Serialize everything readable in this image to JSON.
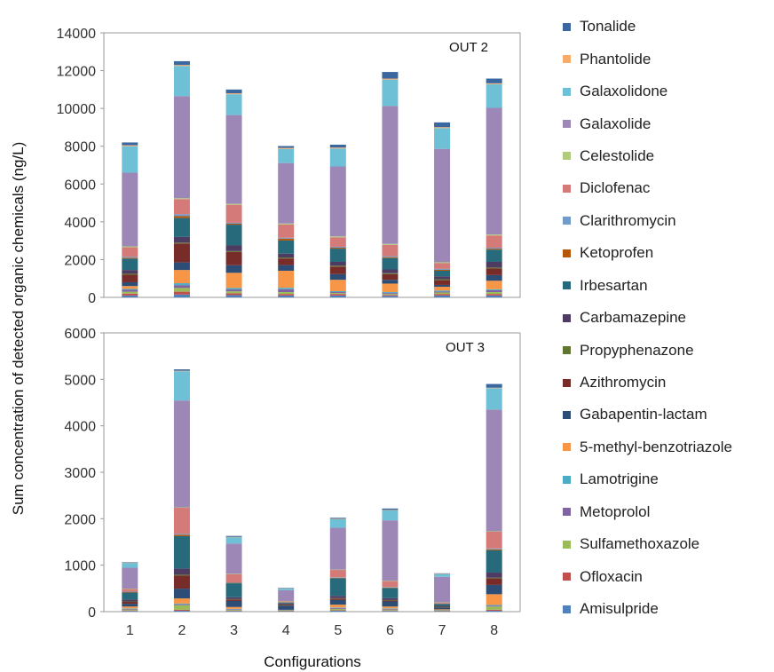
{
  "chart_data": {
    "type": "bar",
    "stacked": true,
    "ylabel": "Sum concentration of detected organic chemicals (ng/L)",
    "xlabel": "Configurations",
    "categories": [
      "1",
      "2",
      "3",
      "4",
      "5",
      "6",
      "7",
      "8"
    ],
    "legend": {
      "position": "right",
      "order": [
        "Tonalide",
        "Phantolide",
        "Galaxolidone",
        "Galaxolide",
        "Celestolide",
        "Diclofenac",
        "Clarithromycin",
        "Ketoprofen",
        "Irbesartan",
        "Carbamazepine",
        "Propyphenazone",
        "Azithromycin",
        "Gabapentin-lactam",
        "5-methyl-benzotriazole",
        "Lamotrigine",
        "Metoprolol",
        "Sulfamethoxazole",
        "Ofloxacin",
        "Amisulpride"
      ]
    },
    "series_colors": {
      "Amisulpride": "#4f81bd",
      "Ofloxacin": "#c0504d",
      "Sulfamethoxazole": "#9bbb59",
      "Metoprolol": "#8064a2",
      "Lamotrigine": "#4bacc6",
      "5-methyl-benzotriazole": "#f79646",
      "Gabapentin-lactam": "#2c4d75",
      "Azithromycin": "#772c2a",
      "Propyphenazone": "#5f7530",
      "Carbamazepine": "#4d3b62",
      "Irbesartan": "#276a7c",
      "Ketoprofen": "#b65708",
      "Clarithromycin": "#729aca",
      "Diclofenac": "#d47a78",
      "Celestolide": "#afcb7b",
      "Galaxolide": "#9d87b7",
      "Galaxolidone": "#6ec0d6",
      "Phantolide": "#f9ab6b",
      "Tonalide": "#3a67a0"
    },
    "panels": [
      {
        "label": "OUT 2",
        "ylim": [
          0,
          14000
        ],
        "yticks": [
          0,
          2000,
          4000,
          6000,
          8000,
          10000,
          12000,
          14000
        ],
        "grid": false,
        "series": [
          {
            "name": "Amisulpride",
            "values": [
              100,
              150,
              120,
              100,
              100,
              80,
              100,
              100
            ]
          },
          {
            "name": "Ofloxacin",
            "values": [
              100,
              150,
              100,
              80,
              80,
              50,
              80,
              80
            ]
          },
          {
            "name": "Sulfamethoxazole",
            "values": [
              100,
              200,
              100,
              100,
              50,
              50,
              80,
              100
            ]
          },
          {
            "name": "Metoprolol",
            "values": [
              100,
              150,
              100,
              150,
              50,
              50,
              50,
              100
            ]
          },
          {
            "name": "Lamotrigine",
            "values": [
              50,
              100,
              80,
              80,
              50,
              50,
              50,
              50
            ]
          },
          {
            "name": "5-methyl-benzotriazole",
            "values": [
              150,
              700,
              800,
              900,
              600,
              450,
              200,
              450
            ]
          },
          {
            "name": "Gabapentin-lactam",
            "values": [
              200,
              400,
              400,
              300,
              300,
              200,
              100,
              300
            ]
          },
          {
            "name": "Azithromycin",
            "values": [
              400,
              1000,
              700,
              350,
              400,
              300,
              250,
              350
            ]
          },
          {
            "name": "Propyphenazone",
            "values": [
              50,
              50,
              50,
              50,
              50,
              50,
              50,
              50
            ]
          },
          {
            "name": "Carbamazepine",
            "values": [
              200,
              300,
              300,
              200,
              200,
              200,
              150,
              300
            ]
          },
          {
            "name": "Irbesartan",
            "values": [
              600,
              1000,
              1100,
              700,
              700,
              600,
              300,
              650
            ]
          },
          {
            "name": "Ketoprofen",
            "values": [
              50,
              100,
              50,
              100,
              50,
              50,
              50,
              50
            ]
          },
          {
            "name": "Clarithromycin",
            "values": [
              50,
              100,
              50,
              50,
              50,
              50,
              50,
              50
            ]
          },
          {
            "name": "Diclofenac",
            "values": [
              500,
              800,
              950,
              700,
              500,
              600,
              300,
              650
            ]
          },
          {
            "name": "Celestolide",
            "values": [
              50,
              50,
              50,
              50,
              50,
              50,
              50,
              50
            ]
          },
          {
            "name": "Galaxolide",
            "values": [
              3900,
              5400,
              4700,
              3200,
              3700,
              7300,
              6000,
              6700
            ]
          },
          {
            "name": "Galaxolidone",
            "values": [
              1400,
              1600,
              1100,
              750,
              950,
              1400,
              1100,
              1250
            ]
          },
          {
            "name": "Phantolide",
            "values": [
              50,
              50,
              50,
              50,
              50,
              50,
              50,
              50
            ]
          },
          {
            "name": "Tonalide",
            "values": [
              150,
              200,
              200,
              100,
              150,
              350,
              250,
              250
            ]
          }
        ]
      },
      {
        "label": "OUT 3",
        "ylim": [
          0,
          6000
        ],
        "yticks": [
          0,
          1000,
          2000,
          3000,
          4000,
          5000,
          6000
        ],
        "grid": false,
        "series": [
          {
            "name": "Amisulpride",
            "values": [
              15,
              20,
              15,
              10,
              20,
              15,
              10,
              20
            ]
          },
          {
            "name": "Ofloxacin",
            "values": [
              10,
              20,
              10,
              5,
              10,
              10,
              5,
              20
            ]
          },
          {
            "name": "Sulfamethoxazole",
            "values": [
              20,
              100,
              15,
              5,
              30,
              20,
              5,
              70
            ]
          },
          {
            "name": "Metoprolol",
            "values": [
              15,
              20,
              10,
              5,
              20,
              15,
              5,
              20
            ]
          },
          {
            "name": "Lamotrigine",
            "values": [
              10,
              15,
              10,
              5,
              10,
              10,
              5,
              15
            ]
          },
          {
            "name": "5-methyl-benzotriazole",
            "values": [
              40,
              110,
              40,
              10,
              60,
              40,
              20,
              230
            ]
          },
          {
            "name": "Gabapentin-lactam",
            "values": [
              60,
              210,
              130,
              90,
              100,
              110,
              40,
              200
            ]
          },
          {
            "name": "Azithromycin",
            "values": [
              40,
              280,
              30,
              20,
              30,
              20,
              10,
              140
            ]
          },
          {
            "name": "Propyphenazone",
            "values": [
              10,
              20,
              10,
              5,
              10,
              10,
              5,
              15
            ]
          },
          {
            "name": "Carbamazepine",
            "values": [
              40,
              130,
              40,
              20,
              50,
              40,
              20,
              110
            ]
          },
          {
            "name": "Irbesartan",
            "values": [
              150,
              700,
              300,
              20,
              380,
              220,
              40,
              480
            ]
          },
          {
            "name": "Ketoprofen",
            "values": [
              10,
              30,
              10,
              5,
              10,
              10,
              5,
              20
            ]
          },
          {
            "name": "Clarithromycin",
            "values": [
              10,
              20,
              10,
              5,
              10,
              10,
              5,
              20
            ]
          },
          {
            "name": "Diclofenac",
            "values": [
              60,
              560,
              180,
              20,
              160,
              130,
              20,
              360
            ]
          },
          {
            "name": "Celestolide",
            "values": [
              5,
              10,
              5,
              5,
              5,
              5,
              5,
              10
            ]
          },
          {
            "name": "Galaxolide",
            "values": [
              450,
              2300,
              650,
              230,
              900,
              1300,
              550,
              2620
            ]
          },
          {
            "name": "Galaxolidone",
            "values": [
              105,
              630,
              140,
              40,
              190,
              220,
              60,
              460
            ]
          },
          {
            "name": "Phantolide",
            "values": [
              5,
              10,
              5,
              5,
              5,
              5,
              5,
              10
            ]
          },
          {
            "name": "Tonalide",
            "values": [
              10,
              30,
              20,
              5,
              20,
              30,
              10,
              80
            ]
          }
        ]
      }
    ]
  }
}
